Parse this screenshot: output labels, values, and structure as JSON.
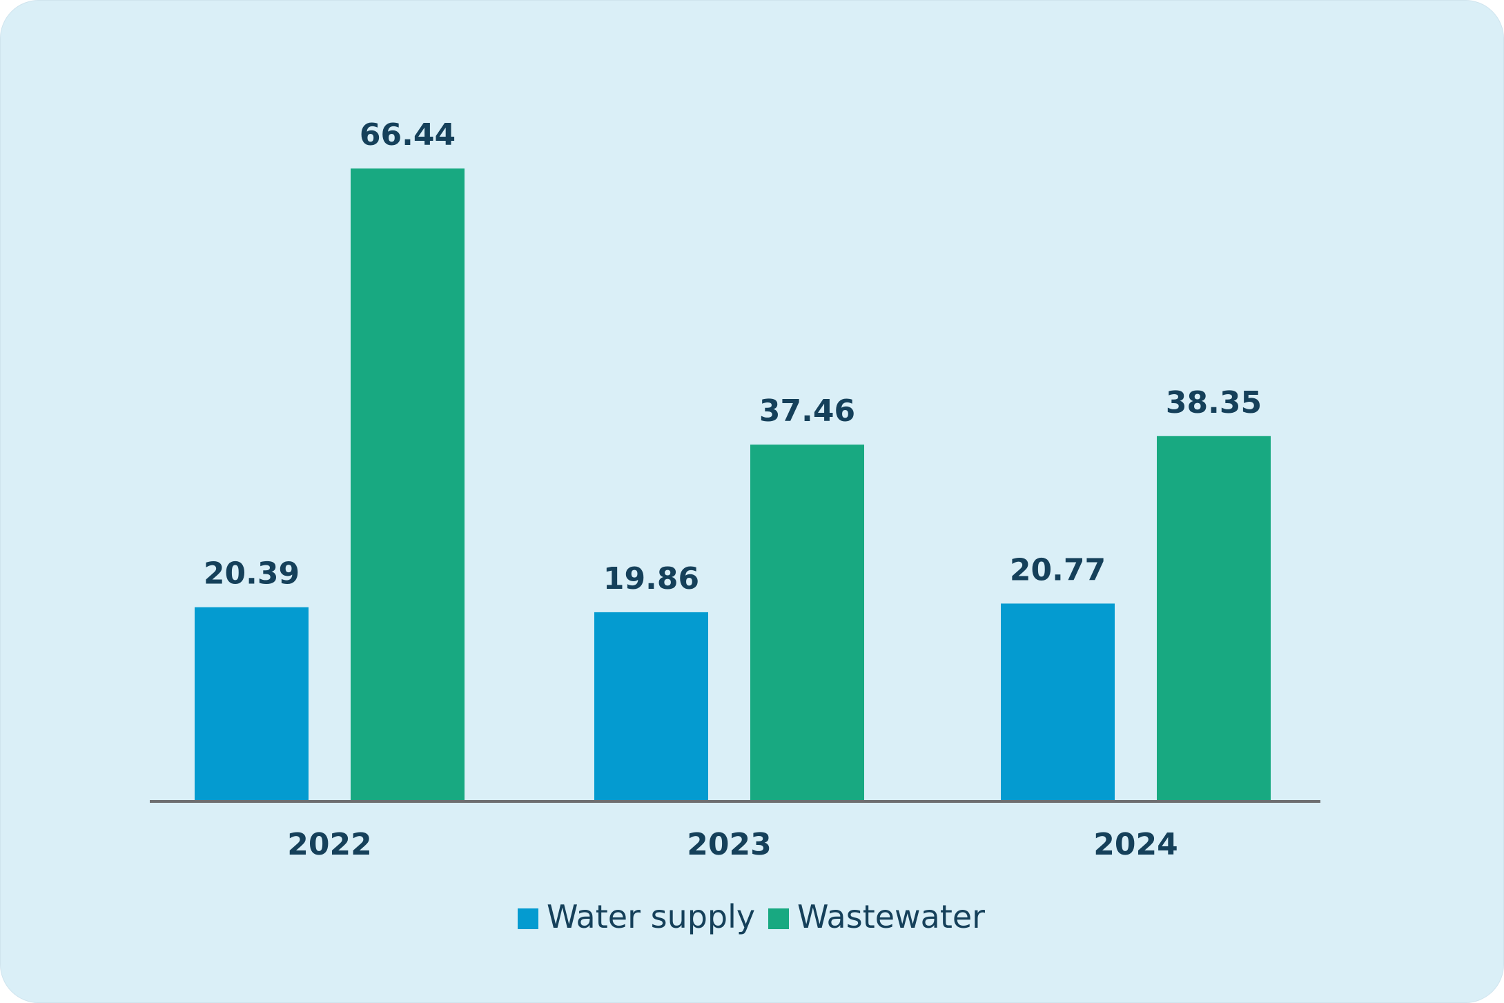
{
  "colors": {
    "background": "#daeff7",
    "water_supply": "#049bd0",
    "wastewater": "#18a981",
    "axis": "#6d6e70",
    "text": "#15405a"
  },
  "chart_data": {
    "type": "bar",
    "categories": [
      "2022",
      "2023",
      "2024"
    ],
    "series": [
      {
        "name": "Water supply",
        "color": "#049bd0",
        "values": [
          20.39,
          19.86,
          20.77
        ]
      },
      {
        "name": "Wastewater",
        "color": "#18a981",
        "values": [
          66.44,
          37.46,
          38.35
        ]
      }
    ],
    "value_labels": [
      [
        "20.39",
        "19.86",
        "20.77"
      ],
      [
        "66.44",
        "37.46",
        "38.35"
      ]
    ],
    "title": "",
    "xlabel": "",
    "ylabel": "",
    "ylim": [
      0,
      70
    ],
    "grid": false,
    "y_axis_visible": false,
    "legend_position": "bottom-center"
  }
}
